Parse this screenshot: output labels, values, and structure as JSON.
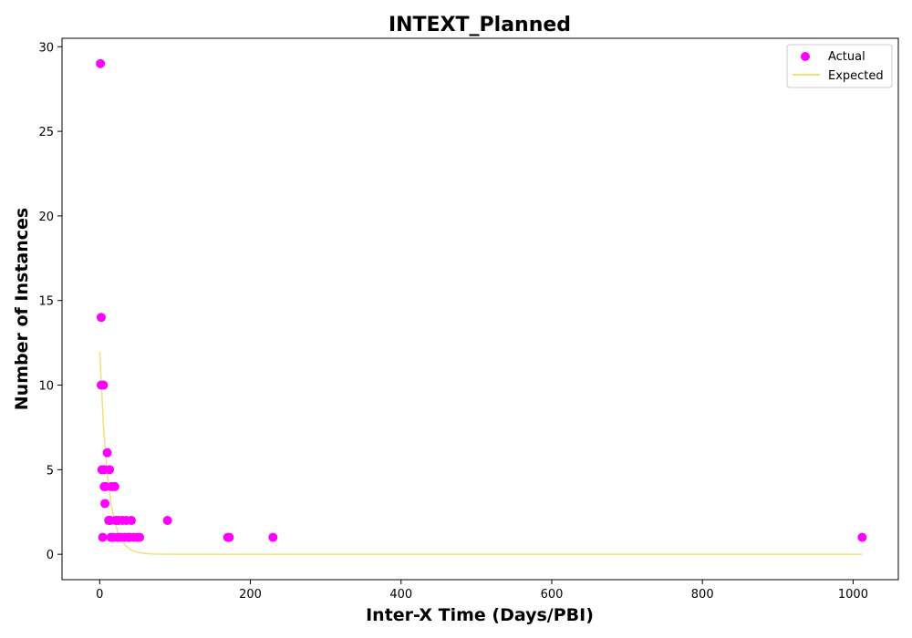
{
  "chart_data": {
    "type": "scatter",
    "title": "INTEXT_Planned",
    "xlabel": "Inter-X Time (Days/PBI)",
    "ylabel": "Number of Instances",
    "xlim": [
      -50,
      1060
    ],
    "ylim": [
      -1.5,
      30.5
    ],
    "xticks": [
      0,
      200,
      400,
      600,
      800,
      1000
    ],
    "yticks": [
      0,
      5,
      10,
      15,
      20,
      25,
      30
    ],
    "grid": false,
    "legend_position": "top-right",
    "series": [
      {
        "name": "Actual",
        "kind": "scatter",
        "color": "#ff00ff",
        "x": [
          1,
          2,
          2,
          3,
          4,
          5,
          6,
          6,
          7,
          8,
          10,
          12,
          13,
          14,
          15,
          16,
          18,
          20,
          21,
          24,
          25,
          28,
          30,
          33,
          35,
          38,
          40,
          42,
          45,
          50,
          53,
          90,
          170,
          172,
          230,
          1012
        ],
        "y": [
          29,
          14,
          10,
          5,
          1,
          10,
          5,
          4,
          3,
          4,
          6,
          2,
          5,
          2,
          1,
          4,
          1,
          4,
          2,
          1,
          2,
          1,
          2,
          1,
          2,
          1,
          1,
          2,
          1,
          1,
          1,
          2,
          1,
          1,
          1,
          1
        ]
      },
      {
        "name": "Expected",
        "kind": "line",
        "color": "#f0e07a",
        "x": [
          0,
          5,
          10,
          15,
          20,
          25,
          30,
          35,
          40,
          45,
          50,
          60,
          70,
          80,
          100,
          150,
          200,
          400,
          600,
          800,
          1012
        ],
        "y": [
          12,
          7.6,
          4.8,
          3.0,
          1.9,
          1.2,
          0.76,
          0.48,
          0.3,
          0.19,
          0.12,
          0.05,
          0.02,
          0.008,
          0.002,
          0,
          0,
          0,
          0,
          0,
          0
        ]
      }
    ]
  }
}
